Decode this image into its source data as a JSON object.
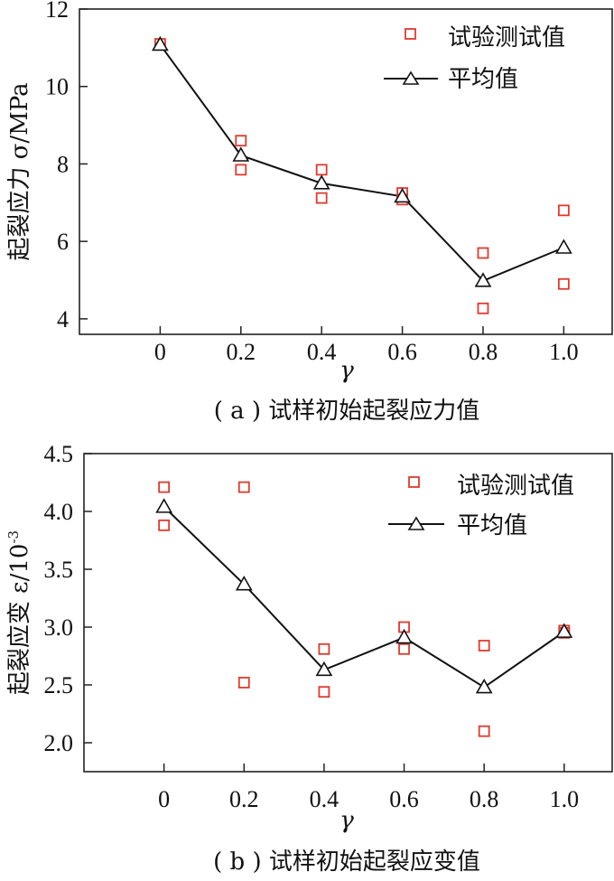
{
  "chart_data": [
    {
      "type": "scatter",
      "x_ticks": [
        "0",
        "0.2",
        "0.4",
        "0.6",
        "0.8",
        "1.0"
      ],
      "y_ticks": [
        "4",
        "6",
        "8",
        "10",
        "12"
      ],
      "xlabel": "γ",
      "ylabel": "起裂应力 σ/MPa",
      "caption": "( a ) 试样初始起裂应力值",
      "xlim": [
        -0.2,
        1.12
      ],
      "ylim": [
        3.6,
        12
      ],
      "legend_position": "top-right",
      "series": [
        {
          "name": "试验测试值",
          "style": "markers",
          "marker": "square",
          "color": "#e03a2f",
          "points": [
            {
              "x": 0,
              "y": 11.1
            },
            {
              "x": 0.2,
              "y": 8.6
            },
            {
              "x": 0.2,
              "y": 7.85
            },
            {
              "x": 0.4,
              "y": 7.85
            },
            {
              "x": 0.4,
              "y": 7.12
            },
            {
              "x": 0.6,
              "y": 7.25
            },
            {
              "x": 0.6,
              "y": 7.08
            },
            {
              "x": 0.8,
              "y": 5.7
            },
            {
              "x": 0.8,
              "y": 4.27
            },
            {
              "x": 1.0,
              "y": 6.8
            },
            {
              "x": 1.0,
              "y": 4.9
            }
          ]
        },
        {
          "name": "平均值",
          "style": "line",
          "marker": "triangle",
          "color": "#111111",
          "points": [
            {
              "x": 0,
              "y": 11.08
            },
            {
              "x": 0.2,
              "y": 8.22
            },
            {
              "x": 0.4,
              "y": 7.5
            },
            {
              "x": 0.6,
              "y": 7.16
            },
            {
              "x": 0.8,
              "y": 4.98
            },
            {
              "x": 1.0,
              "y": 5.84
            }
          ]
        }
      ]
    },
    {
      "type": "scatter",
      "x_ticks": [
        "0",
        "0.2",
        "0.4",
        "0.6",
        "0.8",
        "1.0"
      ],
      "y_ticks": [
        "2.0",
        "2.5",
        "3.0",
        "3.5",
        "4.0",
        "4.5"
      ],
      "xlabel": "γ",
      "ylabel": "起裂应变 ε/10",
      "ylabel_superscript": "-3",
      "caption": "( b ) 试样初始起裂应变值",
      "xlim": [
        -0.2,
        1.12
      ],
      "ylim": [
        1.75,
        4.5
      ],
      "legend_position": "top-right",
      "series": [
        {
          "name": "试验测试值",
          "style": "markers",
          "marker": "square",
          "color": "#e03a2f",
          "points": [
            {
              "x": 0,
              "y": 4.21
            },
            {
              "x": 0,
              "y": 3.88
            },
            {
              "x": 0.2,
              "y": 4.21
            },
            {
              "x": 0.2,
              "y": 2.52
            },
            {
              "x": 0.4,
              "y": 2.81
            },
            {
              "x": 0.4,
              "y": 2.44
            },
            {
              "x": 0.6,
              "y": 3.0
            },
            {
              "x": 0.6,
              "y": 2.81
            },
            {
              "x": 0.8,
              "y": 2.84
            },
            {
              "x": 0.8,
              "y": 2.1
            },
            {
              "x": 1.0,
              "y": 2.97
            },
            {
              "x": 1.0,
              "y": 2.95
            }
          ]
        },
        {
          "name": "平均值",
          "style": "line",
          "marker": "triangle",
          "color": "#111111",
          "points": [
            {
              "x": 0,
              "y": 4.04
            },
            {
              "x": 0.2,
              "y": 3.37
            },
            {
              "x": 0.4,
              "y": 2.63
            },
            {
              "x": 0.6,
              "y": 2.91
            },
            {
              "x": 0.8,
              "y": 2.48
            },
            {
              "x": 1.0,
              "y": 2.96
            }
          ]
        }
      ]
    }
  ]
}
